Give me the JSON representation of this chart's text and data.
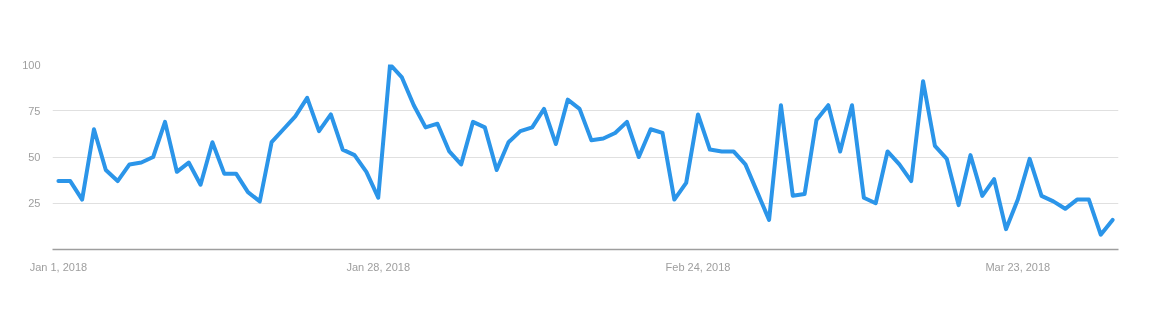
{
  "chart_data": {
    "type": "line",
    "x": [
      "2018-01-01",
      "2018-01-02",
      "2018-01-03",
      "2018-01-04",
      "2018-01-05",
      "2018-01-06",
      "2018-01-07",
      "2018-01-08",
      "2018-01-09",
      "2018-01-10",
      "2018-01-11",
      "2018-01-12",
      "2018-01-13",
      "2018-01-14",
      "2018-01-15",
      "2018-01-16",
      "2018-01-17",
      "2018-01-18",
      "2018-01-19",
      "2018-01-20",
      "2018-01-21",
      "2018-01-22",
      "2018-01-23",
      "2018-01-24",
      "2018-01-25",
      "2018-01-26",
      "2018-01-27",
      "2018-01-28",
      "2018-01-29",
      "2018-01-30",
      "2018-01-31",
      "2018-02-01",
      "2018-02-02",
      "2018-02-03",
      "2018-02-04",
      "2018-02-05",
      "2018-02-06",
      "2018-02-07",
      "2018-02-08",
      "2018-02-09",
      "2018-02-10",
      "2018-02-11",
      "2018-02-12",
      "2018-02-13",
      "2018-02-14",
      "2018-02-15",
      "2018-02-16",
      "2018-02-17",
      "2018-02-18",
      "2018-02-19",
      "2018-02-20",
      "2018-02-21",
      "2018-02-22",
      "2018-02-23",
      "2018-02-24",
      "2018-02-25",
      "2018-02-26",
      "2018-02-27",
      "2018-02-28",
      "2018-03-01",
      "2018-03-02",
      "2018-03-03",
      "2018-03-04",
      "2018-03-05",
      "2018-03-06",
      "2018-03-07",
      "2018-03-08",
      "2018-03-09",
      "2018-03-10",
      "2018-03-11",
      "2018-03-12",
      "2018-03-13",
      "2018-03-14",
      "2018-03-15",
      "2018-03-16",
      "2018-03-17",
      "2018-03-18",
      "2018-03-19",
      "2018-03-20",
      "2018-03-21",
      "2018-03-22",
      "2018-03-23",
      "2018-03-24",
      "2018-03-25",
      "2018-03-26",
      "2018-03-27",
      "2018-03-28",
      "2018-03-29",
      "2018-03-30",
      "2018-03-31"
    ],
    "series": [
      {
        "color": "#2b95e9",
        "values": [
          37,
          37,
          27,
          65,
          43,
          37,
          46,
          47,
          50,
          69,
          42,
          47,
          35,
          58,
          41,
          41,
          31,
          26,
          58,
          65,
          72,
          82,
          64,
          73,
          54,
          51,
          42,
          28,
          100,
          93,
          78,
          66,
          68,
          53,
          46,
          69,
          66,
          43,
          58,
          64,
          66,
          76,
          57,
          81,
          76,
          59,
          60,
          63,
          69,
          50,
          65,
          63,
          27,
          36,
          73,
          54,
          53,
          53,
          46,
          31,
          16,
          78,
          29,
          30,
          70,
          78,
          53,
          78,
          28,
          25,
          53,
          46,
          37,
          91,
          56,
          49,
          24,
          51,
          29,
          38,
          11,
          27,
          49,
          29,
          26,
          22,
          27,
          27,
          8,
          16
        ]
      }
    ],
    "xlim": [
      "2017-12-31T12:00",
      "2018-03-31T12:00"
    ],
    "xticks": [
      {
        "value": "2018-01-01",
        "label": "Jan 1, 2018"
      },
      {
        "value": "2018-01-28",
        "label": "Jan 28, 2018"
      },
      {
        "value": "2018-02-24",
        "label": "Feb 24, 2018"
      },
      {
        "value": "2018-03-23",
        "label": "Mar 23, 2018"
      }
    ],
    "ylim": [
      0,
      100
    ],
    "yticks": [
      25,
      50,
      75,
      100
    ],
    "grid": "y",
    "marker": "none",
    "line_style": "solid"
  }
}
